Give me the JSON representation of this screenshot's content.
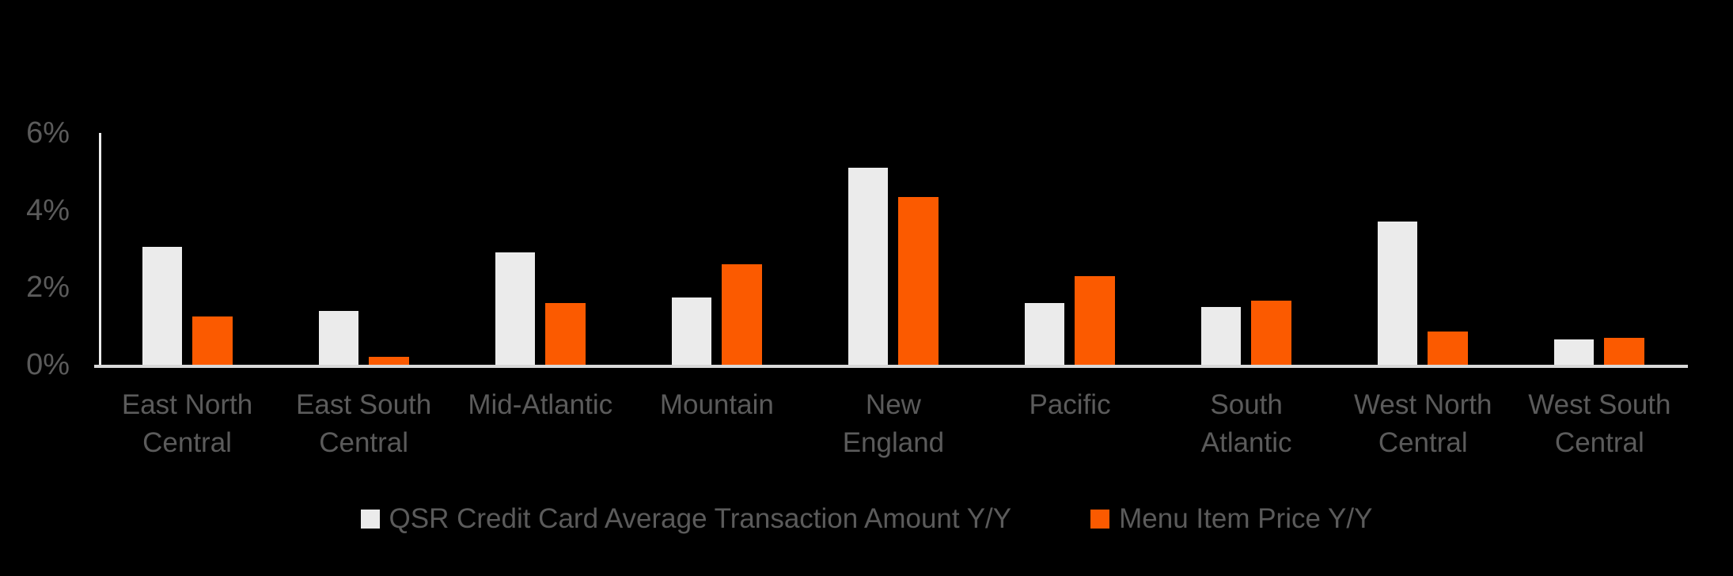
{
  "colors": {
    "background": "#000000",
    "bar_gray": "#EBEBEB",
    "bar_orange": "#FB5A00",
    "axis_line_vertical": "#EDEDED",
    "axis_line_horizontal": "#D9D9D9",
    "text_gray": "#5B5B5B"
  },
  "chart_data": {
    "type": "bar",
    "categories": [
      "East North Central",
      "East South Central",
      "Mid-Atlantic",
      "Mountain",
      "New England",
      "Pacific",
      "South Atlantic",
      "West North Central",
      "West South Central"
    ],
    "category_label_lines": [
      [
        "East North",
        "Central"
      ],
      [
        "East South",
        "Central"
      ],
      [
        "Mid-Atlantic"
      ],
      [
        "Mountain"
      ],
      [
        "New",
        "England"
      ],
      [
        "Pacific"
      ],
      [
        "South",
        "Atlantic"
      ],
      [
        "West North",
        "Central"
      ],
      [
        "West South",
        "Central"
      ]
    ],
    "series": [
      {
        "name": "QSR Credit Card Average Transaction Amount Y/Y",
        "color_key": "bar_gray",
        "values": [
          3.05,
          1.4,
          2.9,
          1.75,
          5.1,
          1.6,
          1.5,
          3.7,
          0.65
        ]
      },
      {
        "name": "Menu Item Price Y/Y",
        "color_key": "bar_orange",
        "values": [
          1.25,
          0.2,
          1.6,
          2.6,
          4.35,
          2.3,
          1.65,
          0.85,
          0.7
        ]
      }
    ],
    "y_axis": {
      "unit": "%",
      "min": 0,
      "max": 6,
      "ticks": [
        {
          "label": "6%",
          "value": 6
        },
        {
          "label": "4%",
          "value": 4
        },
        {
          "label": "2%",
          "value": 2
        },
        {
          "label": "0%",
          "value": 0
        }
      ]
    },
    "xlabel": "",
    "ylabel": "",
    "grid": false,
    "legend_position": "bottom-center"
  }
}
